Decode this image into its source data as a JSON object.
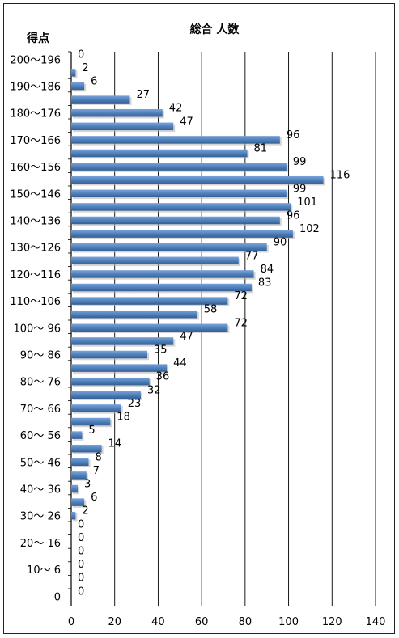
{
  "chart_data": {
    "type": "bar",
    "orientation": "horizontal",
    "title": "総合 人数",
    "ylabel": "得点",
    "xlabel": "",
    "xlim": [
      0,
      140
    ],
    "x_ticks": [
      0,
      20,
      40,
      60,
      80,
      100,
      120,
      140
    ],
    "grid": "vertical",
    "bar_color": "#4F81BD",
    "category_labels": [
      "200〜196",
      "190〜186",
      "180〜176",
      "170〜166",
      "160〜156",
      "150〜146",
      "140〜136",
      "130〜126",
      "120〜116",
      "110〜106",
      "100〜 96",
      "90〜 86",
      "80〜 76",
      "70〜 66",
      "60〜 56",
      "50〜 46",
      "40〜 36",
      "30〜 26",
      "20〜 16",
      "10〜 6",
      "0"
    ],
    "values": [
      0,
      2,
      6,
      27,
      42,
      47,
      96,
      81,
      99,
      116,
      99,
      101,
      96,
      102,
      90,
      77,
      84,
      83,
      72,
      58,
      72,
      47,
      35,
      44,
      36,
      32,
      23,
      18,
      5,
      14,
      8,
      7,
      3,
      6,
      2,
      0,
      0,
      0,
      0,
      0,
      0
    ]
  }
}
